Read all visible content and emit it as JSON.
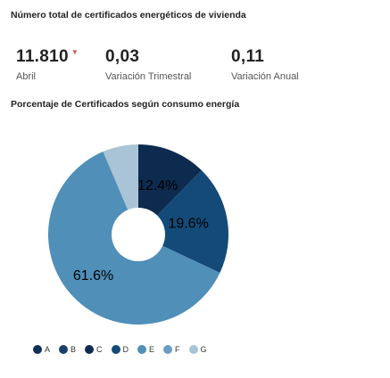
{
  "kpis": {
    "title": "Número total de certificados energéticos de vivienda",
    "items": [
      {
        "value": "11.810",
        "label": "Abril",
        "trend": "down"
      },
      {
        "value": "0,03",
        "label": "Variación Trimestral"
      },
      {
        "value": "0,11",
        "label": "Variación Anual"
      }
    ]
  },
  "chart_data": {
    "type": "pie",
    "title": "Porcentaje de Certificados según consumo energía",
    "donut": true,
    "legend_position": "bottom",
    "slices": [
      {
        "name": "A",
        "value": 0.0,
        "color": "#0f2f57"
      },
      {
        "name": "B",
        "value": 0.0,
        "color": "#1a4068"
      },
      {
        "name": "C",
        "value": 12.4,
        "color": "#0d2b4f",
        "label": "12.4%"
      },
      {
        "name": "D",
        "value": 19.6,
        "color": "#144a78",
        "label": "19.6%"
      },
      {
        "name": "E",
        "value": 61.6,
        "color": "#4f8fb8",
        "label": "61.6%"
      },
      {
        "name": "F",
        "value": 0.0,
        "color": "#6a9ec2"
      },
      {
        "name": "G",
        "value": 6.4,
        "color": "#a9c4d6"
      }
    ]
  }
}
